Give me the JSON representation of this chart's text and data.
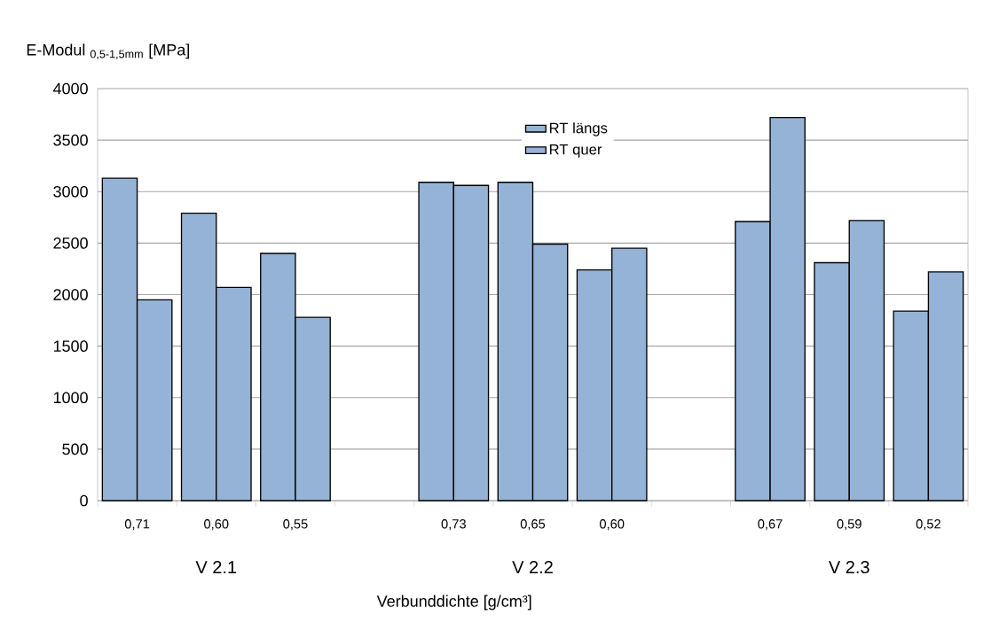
{
  "chart_data": {
    "type": "bar",
    "ylabel": "E-Modul $_{0,5-1,5mm}$ [MPa]",
    "xlabel": "Verbunddichte [g/cm³]",
    "categories": [
      "0,71",
      "0,60",
      "0,55",
      null,
      "0,73",
      "0,65",
      "0,60",
      null,
      "0,67",
      "0,59",
      "0,52"
    ],
    "series": [
      {
        "name": "RT längs",
        "color": "#95b3d7",
        "values": [
          3130,
          2790,
          2400,
          null,
          3090,
          3090,
          2240,
          null,
          2710,
          2310,
          1840
        ]
      },
      {
        "name": "RT quer",
        "color": "#95b3d7",
        "values": [
          1950,
          2070,
          1780,
          null,
          3060,
          2490,
          2450,
          null,
          3720,
          2720,
          2220
        ]
      }
    ],
    "ylim": [
      0,
      4000
    ],
    "yticks": [
      0,
      500,
      1000,
      1500,
      2000,
      2500,
      3000,
      3500,
      4000
    ],
    "grid": "y",
    "legend": "top",
    "annotations": [
      "V 2.1",
      "V 2.2",
      "V 2.3"
    ]
  }
}
